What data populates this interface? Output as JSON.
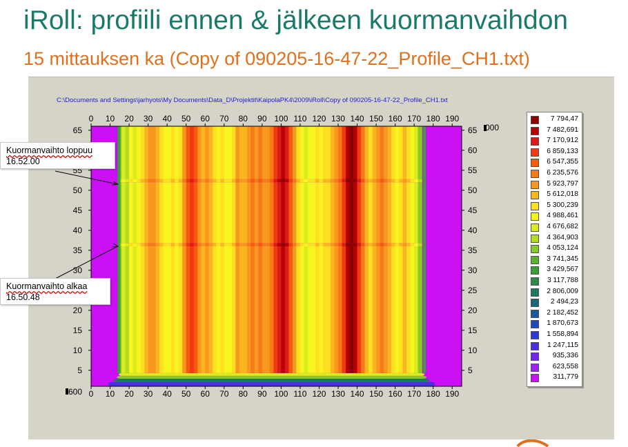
{
  "title": "iRoll: profiili ennen & jälkeen kuormanvaihdon",
  "subtitle": "15 mittauksen ka (Copy of 090205-16-47-22_Profile_CH1.txt)",
  "file_path": "C:\\Documents and Settings\\jarhyots\\My Documents\\Data_D\\Projektit\\KaipolaPK4\\2009\\iRoll\\Copy of 090205-16-47-22_Profile_CH1.txt",
  "callouts": [
    {
      "line1": "Kuormanvaihto  loppuu",
      "line2": "16.52.00",
      "y": 51.5
    },
    {
      "line1": "Kuormanvaihto  alkaa",
      "line2": "16.50.48",
      "y": 36
    }
  ],
  "colors": {
    "background_panel": "#d6d3c9",
    "title": "#1a7a6a",
    "subtitle": "#e0701c",
    "file_path": "#2020d8"
  },
  "chart_data": {
    "type": "heatmap",
    "x_ticks": [
      0,
      10,
      20,
      30,
      40,
      50,
      60,
      70,
      80,
      90,
      100,
      110,
      120,
      130,
      140,
      150,
      160,
      170,
      180,
      190
    ],
    "y_ticks": [
      5,
      10,
      15,
      20,
      25,
      30,
      35,
      40,
      45,
      50,
      55,
      60,
      65
    ],
    "xlim": [
      0,
      195
    ],
    "ylim": [
      1,
      66
    ],
    "x_ticks_top": true,
    "y_ticks_right": true,
    "left_corner_label": "600",
    "right_corner_label": "000",
    "data_x_range": [
      15,
      175
    ],
    "event_rows": [
      36,
      52
    ],
    "legend_position": "right",
    "legend": [
      {
        "label": "7 794,47",
        "color": "#8b0000"
      },
      {
        "label": "7 482,691",
        "color": "#b30000"
      },
      {
        "label": "7 170,912",
        "color": "#dc1a1a"
      },
      {
        "label": "6 859,133",
        "color": "#f03a10"
      },
      {
        "label": "6 547,355",
        "color": "#f55a10"
      },
      {
        "label": "6 235,576",
        "color": "#f57a18"
      },
      {
        "label": "5 923,797",
        "color": "#f89820"
      },
      {
        "label": "5 612,018",
        "color": "#fbb520"
      },
      {
        "label": "5 300,239",
        "color": "#fde020"
      },
      {
        "label": "4 988,461",
        "color": "#f6f520"
      },
      {
        "label": "4 676,682",
        "color": "#d8ec20"
      },
      {
        "label": "4 364,903",
        "color": "#b2dd22"
      },
      {
        "label": "4 053,124",
        "color": "#88c828"
      },
      {
        "label": "3 741,345",
        "color": "#5cb030"
      },
      {
        "label": "3 429,567",
        "color": "#3a9c3a"
      },
      {
        "label": "3 117,788",
        "color": "#2a8a4c"
      },
      {
        "label": "2 806,009",
        "color": "#1a7a60"
      },
      {
        "label": "2 494,23",
        "color": "#156a78"
      },
      {
        "label": "2 182,452",
        "color": "#1a5a98"
      },
      {
        "label": "1 870,673",
        "color": "#2048b8"
      },
      {
        "label": "1 558,894",
        "color": "#3038d0"
      },
      {
        "label": "1 247,115",
        "color": "#4a30e0"
      },
      {
        "label": "935,336",
        "color": "#7028ea"
      },
      {
        "label": "623,558",
        "color": "#a020f0"
      },
      {
        "label": "311,779",
        "color": "#cc10f5"
      }
    ],
    "column_profile": [
      {
        "x": 15,
        "level": 12
      },
      {
        "x": 17,
        "level": 10
      },
      {
        "x": 19,
        "level": 11
      },
      {
        "x": 21,
        "level": 9
      },
      {
        "x": 23,
        "level": 10
      },
      {
        "x": 25,
        "level": 9
      },
      {
        "x": 27,
        "level": 8
      },
      {
        "x": 29,
        "level": 7
      },
      {
        "x": 31,
        "level": 6
      },
      {
        "x": 33,
        "level": 6
      },
      {
        "x": 35,
        "level": 7
      },
      {
        "x": 37,
        "level": 8
      },
      {
        "x": 39,
        "level": 9
      },
      {
        "x": 41,
        "level": 9
      },
      {
        "x": 43,
        "level": 8
      },
      {
        "x": 45,
        "level": 9
      },
      {
        "x": 47,
        "level": 8
      },
      {
        "x": 49,
        "level": 6
      },
      {
        "x": 51,
        "level": 4
      },
      {
        "x": 53,
        "level": 3
      },
      {
        "x": 55,
        "level": 4
      },
      {
        "x": 57,
        "level": 6
      },
      {
        "x": 59,
        "level": 7
      },
      {
        "x": 61,
        "level": 6
      },
      {
        "x": 63,
        "level": 7
      },
      {
        "x": 65,
        "level": 8
      },
      {
        "x": 67,
        "level": 9
      },
      {
        "x": 69,
        "level": 8
      },
      {
        "x": 71,
        "level": 9
      },
      {
        "x": 73,
        "level": 9
      },
      {
        "x": 75,
        "level": 8
      },
      {
        "x": 77,
        "level": 6
      },
      {
        "x": 79,
        "level": 7
      },
      {
        "x": 81,
        "level": 7
      },
      {
        "x": 83,
        "level": 6
      },
      {
        "x": 85,
        "level": 5
      },
      {
        "x": 87,
        "level": 6
      },
      {
        "x": 89,
        "level": 5
      },
      {
        "x": 91,
        "level": 6
      },
      {
        "x": 93,
        "level": 6
      },
      {
        "x": 95,
        "level": 5
      },
      {
        "x": 97,
        "level": 3
      },
      {
        "x": 99,
        "level": 2
      },
      {
        "x": 101,
        "level": 1
      },
      {
        "x": 103,
        "level": 2
      },
      {
        "x": 105,
        "level": 4
      },
      {
        "x": 107,
        "level": 6
      },
      {
        "x": 109,
        "level": 8
      },
      {
        "x": 111,
        "level": 9
      },
      {
        "x": 113,
        "level": 10
      },
      {
        "x": 115,
        "level": 9
      },
      {
        "x": 117,
        "level": 9
      },
      {
        "x": 119,
        "level": 8
      },
      {
        "x": 121,
        "level": 9
      },
      {
        "x": 123,
        "level": 8
      },
      {
        "x": 125,
        "level": 8
      },
      {
        "x": 127,
        "level": 7
      },
      {
        "x": 129,
        "level": 6
      },
      {
        "x": 131,
        "level": 5
      },
      {
        "x": 133,
        "level": 3
      },
      {
        "x": 135,
        "level": 1
      },
      {
        "x": 137,
        "level": 0
      },
      {
        "x": 139,
        "level": 1
      },
      {
        "x": 141,
        "level": 3
      },
      {
        "x": 143,
        "level": 5
      },
      {
        "x": 145,
        "level": 7
      },
      {
        "x": 147,
        "level": 8
      },
      {
        "x": 149,
        "level": 7
      },
      {
        "x": 151,
        "level": 6
      },
      {
        "x": 153,
        "level": 5
      },
      {
        "x": 155,
        "level": 6
      },
      {
        "x": 157,
        "level": 7
      },
      {
        "x": 159,
        "level": 8
      },
      {
        "x": 161,
        "level": 9
      },
      {
        "x": 163,
        "level": 8
      },
      {
        "x": 165,
        "level": 7
      },
      {
        "x": 167,
        "level": 8
      },
      {
        "x": 169,
        "level": 9
      },
      {
        "x": 171,
        "level": 10
      },
      {
        "x": 173,
        "level": 12
      }
    ]
  }
}
